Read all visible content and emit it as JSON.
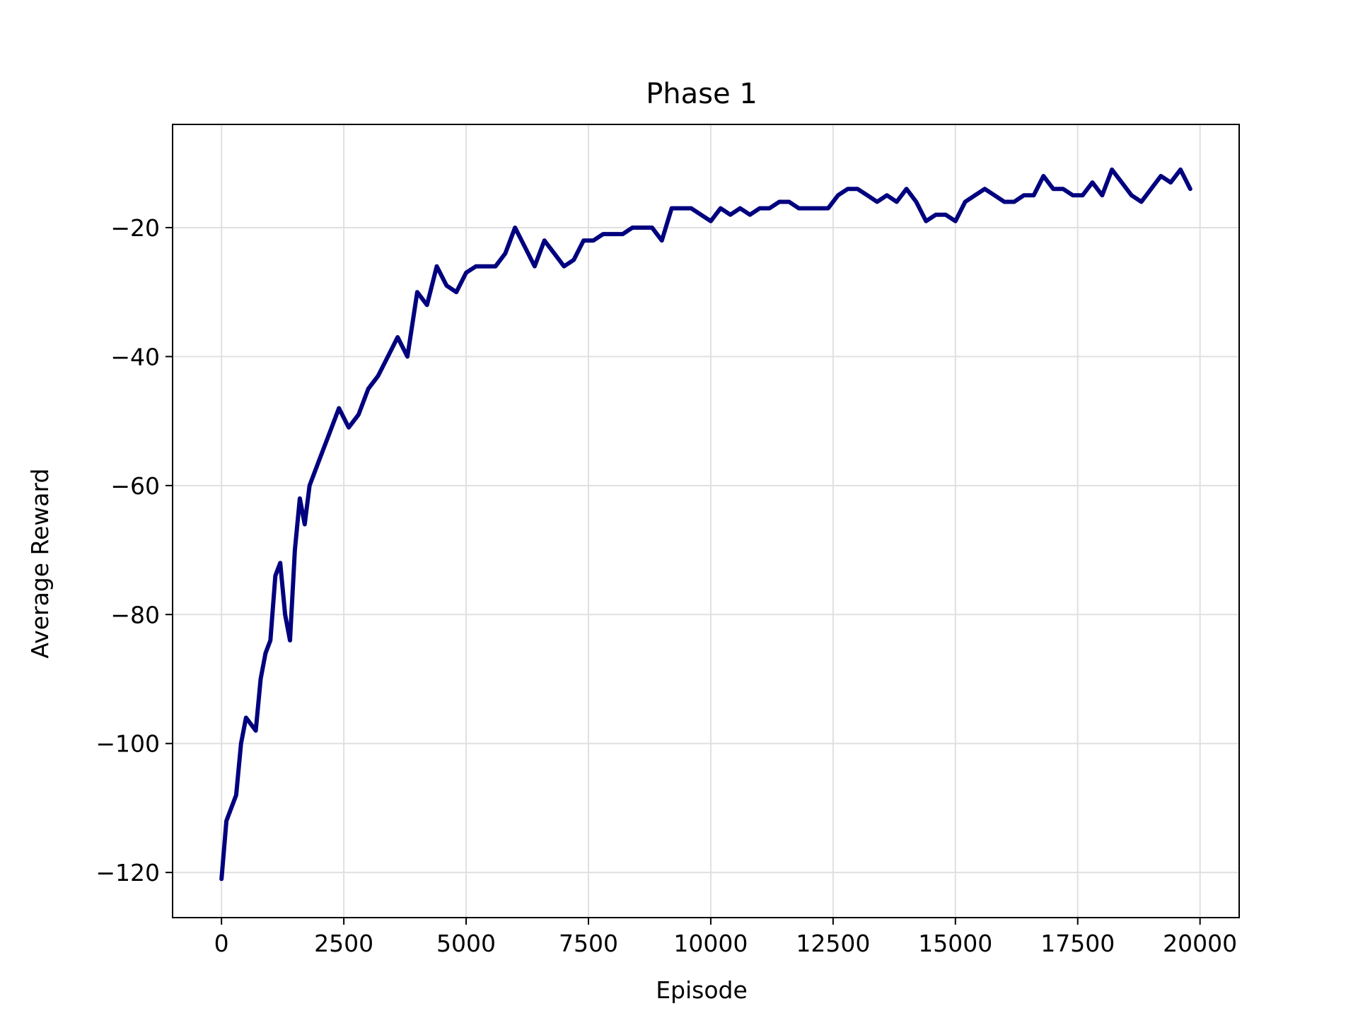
{
  "chart_data": {
    "type": "line",
    "title": "Phase 1",
    "xlabel": "Episode",
    "ylabel": "Average Reward",
    "xlim": [
      -1000,
      20800
    ],
    "ylim": [
      -127,
      -4
    ],
    "xticks": [
      0,
      2500,
      5000,
      7500,
      10000,
      12500,
      15000,
      17500,
      20000
    ],
    "xtick_labels": [
      "0",
      "2500",
      "5000",
      "7500",
      "10000",
      "12500",
      "15000",
      "17500",
      "20000"
    ],
    "yticks": [
      -120,
      -100,
      -80,
      -60,
      -40,
      -20
    ],
    "ytick_labels": [
      "−120",
      "−100",
      "−80",
      "−60",
      "−40",
      "−20"
    ],
    "grid": true,
    "series": [
      {
        "color": "#00007f",
        "x": [
          0,
          100,
          200,
          300,
          400,
          500,
          600,
          700,
          800,
          900,
          1000,
          1100,
          1200,
          1300,
          1400,
          1500,
          1600,
          1700,
          1800,
          1900,
          2000,
          2200,
          2400,
          2600,
          2800,
          3000,
          3200,
          3400,
          3600,
          3800,
          4000,
          4200,
          4400,
          4600,
          4800,
          5000,
          5200,
          5400,
          5600,
          5800,
          6000,
          6200,
          6400,
          6600,
          6800,
          7000,
          7200,
          7400,
          7600,
          7800,
          8000,
          8200,
          8400,
          8600,
          8800,
          9000,
          9200,
          9400,
          9600,
          9800,
          10000,
          10200,
          10400,
          10600,
          10800,
          11000,
          11200,
          11400,
          11600,
          11800,
          12000,
          12200,
          12400,
          12600,
          12800,
          13000,
          13200,
          13400,
          13600,
          13800,
          14000,
          14200,
          14400,
          14600,
          14800,
          15000,
          15200,
          15400,
          15600,
          15800,
          16000,
          16200,
          16400,
          16600,
          16800,
          17000,
          17200,
          17400,
          17600,
          17800,
          18000,
          18200,
          18400,
          18600,
          18800,
          19000,
          19200,
          19400,
          19600,
          19800
        ],
        "y": [
          -121,
          -112,
          -110,
          -108,
          -100,
          -96,
          -97,
          -98,
          -90,
          -86,
          -84,
          -74,
          -72,
          -80,
          -84,
          -70,
          -62,
          -66,
          -60,
          -58,
          -56,
          -52,
          -48,
          -51,
          -49,
          -45,
          -43,
          -40,
          -37,
          -40,
          -30,
          -32,
          -26,
          -29,
          -30,
          -27,
          -26,
          -26,
          -26,
          -24,
          -20,
          -23,
          -26,
          -22,
          -24,
          -26,
          -25,
          -22,
          -22,
          -21,
          -21,
          -21,
          -20,
          -20,
          -20,
          -22,
          -17,
          -17,
          -17,
          -18,
          -19,
          -17,
          -18,
          -17,
          -18,
          -17,
          -17,
          -16,
          -16,
          -17,
          -17,
          -17,
          -17,
          -15,
          -14,
          -14,
          -15,
          -16,
          -15,
          -16,
          -14,
          -16,
          -19,
          -18,
          -18,
          -19,
          -16,
          -15,
          -14,
          -15,
          -16,
          -16,
          -15,
          -15,
          -12,
          -14,
          -14,
          -15,
          -15,
          -13,
          -15,
          -11,
          -13,
          -15,
          -16,
          -14,
          -12,
          -13,
          -11,
          -14
        ]
      }
    ]
  }
}
